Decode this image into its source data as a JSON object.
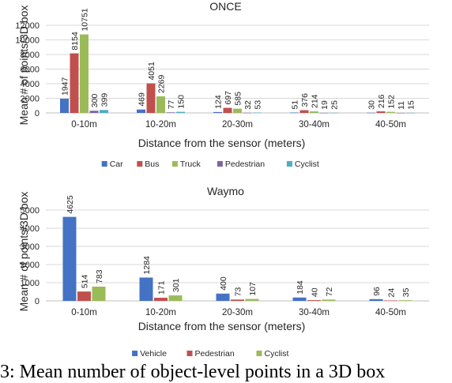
{
  "caption": "3: Mean number of object-level points in a 3D box",
  "chart_data": [
    {
      "type": "bar",
      "title": "ONCE",
      "xlabel": "Distance from the sensor (meters)",
      "ylabel": "Mean # of points/3D box",
      "categories": [
        "0-10m",
        "10-20m",
        "20-30m",
        "30-40m",
        "40-50m"
      ],
      "yticks": [
        "0",
        "2000",
        "4000",
        "6000",
        "8000",
        "10000",
        "12000"
      ],
      "ylim": [
        0,
        12000
      ],
      "grid": true,
      "legend_position": "bottom",
      "series": [
        {
          "name": "Car",
          "color": "#4472C4",
          "values": [
            1947,
            469,
            124,
            51,
            30
          ]
        },
        {
          "name": "Bus",
          "color": "#C0504D",
          "values": [
            8154,
            4051,
            697,
            376,
            216
          ]
        },
        {
          "name": "Truck",
          "color": "#9BBB59",
          "values": [
            10751,
            2269,
            585,
            214,
            152
          ]
        },
        {
          "name": "Pedestrian",
          "color": "#8064A2",
          "values": [
            300,
            77,
            32,
            19,
            11
          ]
        },
        {
          "name": "Cyclist",
          "color": "#4BACC6",
          "values": [
            399,
            150,
            53,
            25,
            15
          ]
        }
      ]
    },
    {
      "type": "bar",
      "title": "Waymo",
      "xlabel": "Distance from the sensor (meters)",
      "ylabel": "Mean # of points/3D box",
      "categories": [
        "0-10m",
        "10-20m",
        "20-30m",
        "30-40m",
        "40-50m"
      ],
      "yticks": [
        "0",
        "1000",
        "2000",
        "3000",
        "4000",
        "5000"
      ],
      "ylim": [
        0,
        5000
      ],
      "grid": true,
      "legend_position": "bottom",
      "series": [
        {
          "name": "Vehicle",
          "color": "#4472C4",
          "values": [
            4625,
            1284,
            400,
            184,
            96
          ]
        },
        {
          "name": "Pedestrian",
          "color": "#C0504D",
          "values": [
            514,
            171,
            73,
            40,
            24
          ]
        },
        {
          "name": "Cyclist",
          "color": "#9BBB59",
          "values": [
            783,
            301,
            107,
            72,
            35
          ]
        }
      ]
    }
  ]
}
